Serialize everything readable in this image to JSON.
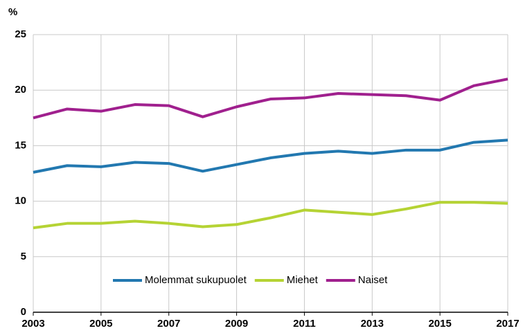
{
  "chart_data": {
    "type": "line",
    "ylabel": "%",
    "x": [
      2003,
      2004,
      2005,
      2006,
      2007,
      2008,
      2009,
      2010,
      2011,
      2012,
      2013,
      2014,
      2015,
      2016,
      2017
    ],
    "series": [
      {
        "name": "Molemmat sukupuolet",
        "color": "#2278b0",
        "values": [
          12.6,
          13.2,
          13.1,
          13.5,
          13.4,
          12.7,
          13.3,
          13.9,
          14.3,
          14.5,
          14.3,
          14.6,
          14.6,
          15.3,
          15.5
        ]
      },
      {
        "name": "Miehet",
        "color": "#b5d334",
        "values": [
          7.6,
          8.0,
          8.0,
          8.2,
          8.0,
          7.7,
          7.9,
          8.5,
          9.2,
          9.0,
          8.8,
          9.3,
          9.9,
          9.9,
          9.8
        ]
      },
      {
        "name": "Naiset",
        "color": "#a0208e",
        "values": [
          17.5,
          18.3,
          18.1,
          18.7,
          18.6,
          17.6,
          18.5,
          19.2,
          19.3,
          19.7,
          19.6,
          19.5,
          19.1,
          20.4,
          21.0
        ]
      }
    ],
    "xlim": [
      2003,
      2017
    ],
    "xticks": [
      2003,
      2005,
      2007,
      2009,
      2011,
      2013,
      2015,
      2017
    ],
    "ylim": [
      0,
      25
    ],
    "yticks": [
      0,
      5,
      10,
      15,
      20,
      25
    ],
    "grid": true,
    "legend": "bottom"
  }
}
